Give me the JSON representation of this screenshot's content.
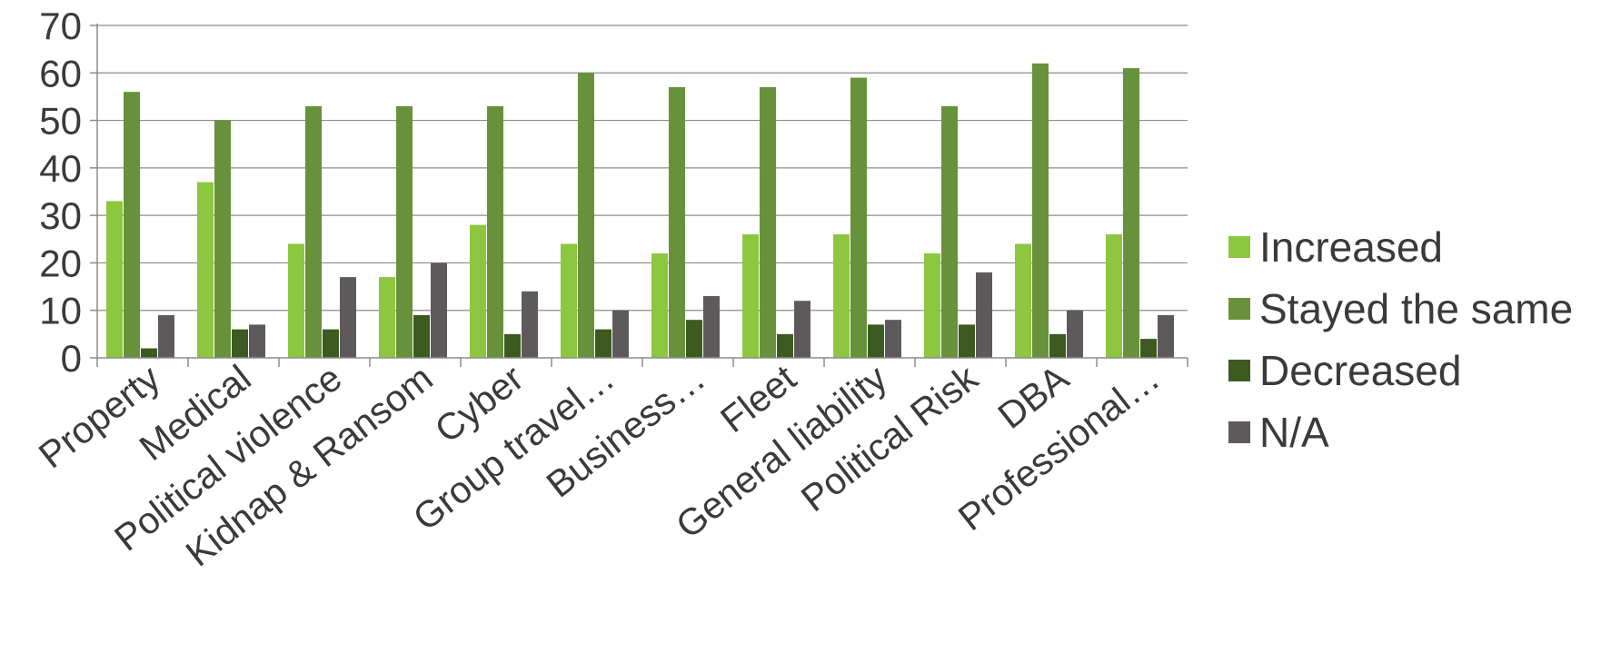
{
  "chart_data": {
    "type": "bar",
    "categories": [
      "Property",
      "Medical",
      "Political violence",
      "Kidnap & Ransom",
      "Cyber",
      "Group travel…",
      "Business…",
      "Fleet",
      "General liability",
      "Political Risk",
      "DBA",
      "Professional…"
    ],
    "series": [
      {
        "name": "Increased",
        "color": "#8dc63f",
        "values": [
          33,
          37,
          24,
          17,
          28,
          24,
          22,
          26,
          26,
          22,
          24,
          26
        ]
      },
      {
        "name": "Stayed the same",
        "color": "#67913a",
        "values": [
          56,
          50,
          53,
          53,
          53,
          60,
          57,
          57,
          59,
          53,
          62,
          61
        ]
      },
      {
        "name": "Decreased",
        "color": "#3d5a20",
        "values": [
          2,
          6,
          6,
          9,
          5,
          6,
          8,
          5,
          7,
          7,
          5,
          4
        ]
      },
      {
        "name": "N/A",
        "color": "#5e5a5c",
        "values": [
          9,
          7,
          17,
          20,
          14,
          10,
          13,
          12,
          8,
          18,
          10,
          9
        ]
      }
    ],
    "yticks": [
      "0",
      "10",
      "20",
      "30",
      "40",
      "50",
      "60",
      "70"
    ],
    "ylim": [
      0,
      70
    ],
    "grid": true,
    "legend_position": "right",
    "title": "",
    "xlabel": "",
    "ylabel": ""
  }
}
